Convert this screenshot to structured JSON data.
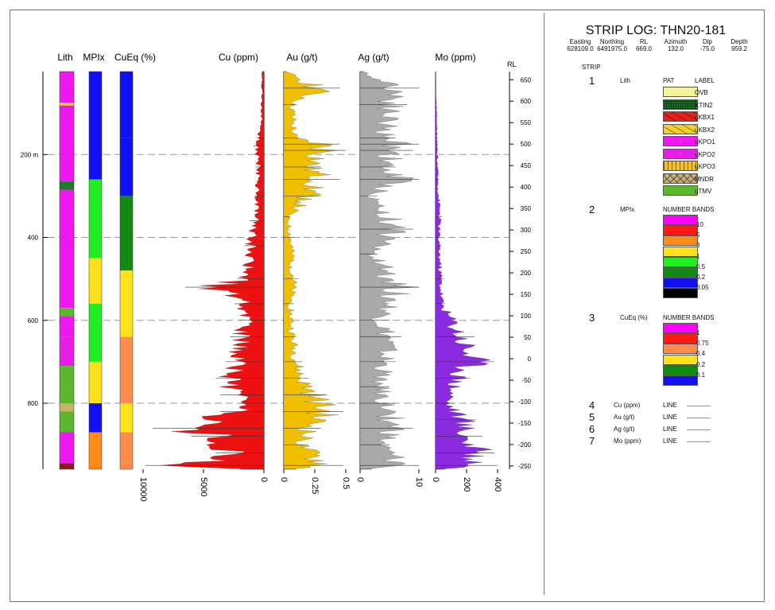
{
  "title": "STRIP LOG: THN20-181",
  "collar": {
    "headers": [
      "Easting",
      "Northing",
      "RL",
      "Azimuth",
      "Dip",
      "Depth"
    ],
    "values": [
      "628109.0",
      "6491975.0",
      "669.0",
      "132.0",
      "-75.0",
      "959.2"
    ]
  },
  "legend": {
    "strip_header": "STRIP",
    "strips": [
      {
        "num": "1",
        "name": "Lith",
        "col2": "PAT",
        "col3": "LABEL",
        "items": [
          {
            "label": "OVB",
            "color": "#f7f39a",
            "pattern": "none"
          },
          {
            "label": "KTIN2",
            "color": "#1d7a2a",
            "pattern": "grid"
          },
          {
            "label": "uKBX1",
            "color": "#e8201c",
            "pattern": "breccia"
          },
          {
            "label": "uKBX2",
            "color": "#f2d12a",
            "pattern": "breccia"
          },
          {
            "label": "uKPO1",
            "color": "#f018f0",
            "pattern": "dots"
          },
          {
            "label": "uKPO2",
            "color": "#e61ee6",
            "pattern": "dots"
          },
          {
            "label": "uKPO3",
            "color": "#f2c21e",
            "pattern": "squares"
          },
          {
            "label": "MNDR",
            "color": "#c8b26a",
            "pattern": "cross"
          },
          {
            "label": "uTMV",
            "color": "#5ab82c",
            "pattern": "none"
          }
        ]
      },
      {
        "num": "2",
        "name": "MPIx",
        "col2": "NUMBER BANDS",
        "items": [
          {
            "label": "10",
            "color": "#ff00ff"
          },
          {
            "label": "5",
            "color": "#ff1a1a"
          },
          {
            "label": "3",
            "color": "#ff8c1a"
          },
          {
            "label": "1",
            "color": "#ffe21a"
          },
          {
            "label": "0.5",
            "color": "#22ee22"
          },
          {
            "label": "0.2",
            "color": "#128a12"
          },
          {
            "label": "0.05",
            "color": "#1010f0"
          },
          {
            "label": "",
            "color": "#000000"
          }
        ]
      },
      {
        "num": "3",
        "name": "CuEq (%)",
        "col2": "NUMBER BANDS",
        "items": [
          {
            "label": "1",
            "color": "#ff00ff"
          },
          {
            "label": "0.75",
            "color": "#ff1a1a"
          },
          {
            "label": "0.4",
            "color": "#ff8c4a"
          },
          {
            "label": "0.2",
            "color": "#ffe21a"
          },
          {
            "label": "0.1",
            "color": "#128a12"
          },
          {
            "label": "",
            "color": "#1010f0"
          }
        ]
      }
    ],
    "lines": [
      {
        "num": "4",
        "name": "Cu (ppm)",
        "type": "LINE"
      },
      {
        "num": "5",
        "name": "Au (g/t)",
        "type": "LINE"
      },
      {
        "num": "6",
        "name": "Ag (g/t)",
        "type": "LINE"
      },
      {
        "num": "7",
        "name": "Mo (ppm)",
        "type": "LINE"
      }
    ]
  },
  "chart_data": {
    "type": "strip-log",
    "depth_axis": {
      "range": [
        0,
        959.2
      ],
      "unit_label": "m",
      "ticks": [
        "200 m",
        "400",
        "600",
        "800"
      ],
      "tick_values": [
        200,
        400,
        600,
        800
      ],
      "dashed_grid": true
    },
    "rl_axis": {
      "label": "RL",
      "ticks": [
        650,
        600,
        550,
        500,
        450,
        400,
        350,
        300,
        250,
        200,
        150,
        100,
        50,
        0,
        -50,
        -100,
        -150,
        -200,
        -250
      ]
    },
    "strip_columns": [
      {
        "name": "Lith",
        "bands": [
          {
            "from": 0,
            "to": 75,
            "color": "#f018f0"
          },
          {
            "from": 75,
            "to": 82,
            "color": "#f2d12a"
          },
          {
            "from": 82,
            "to": 265,
            "color": "#f018f0"
          },
          {
            "from": 265,
            "to": 285,
            "color": "#1d7a2a"
          },
          {
            "from": 285,
            "to": 570,
            "color": "#f018f0"
          },
          {
            "from": 570,
            "to": 590,
            "color": "#5ab82c"
          },
          {
            "from": 590,
            "to": 640,
            "color": "#f018f0"
          },
          {
            "from": 640,
            "to": 710,
            "color": "#e61ee6"
          },
          {
            "from": 710,
            "to": 800,
            "color": "#5ab82c"
          },
          {
            "from": 800,
            "to": 820,
            "color": "#c8b26a"
          },
          {
            "from": 820,
            "to": 870,
            "color": "#5ab82c"
          },
          {
            "from": 870,
            "to": 945,
            "color": "#f018f0"
          },
          {
            "from": 945,
            "to": 959,
            "color": "#8b1a1a"
          }
        ]
      },
      {
        "name": "MPIx",
        "bands": [
          {
            "from": 0,
            "to": 260,
            "color": "#1010f0"
          },
          {
            "from": 260,
            "to": 450,
            "color": "#22ee22"
          },
          {
            "from": 450,
            "to": 560,
            "color": "#ffe21a"
          },
          {
            "from": 560,
            "to": 700,
            "color": "#22ee22"
          },
          {
            "from": 700,
            "to": 800,
            "color": "#ffe21a"
          },
          {
            "from": 800,
            "to": 870,
            "color": "#1010f0"
          },
          {
            "from": 870,
            "to": 959,
            "color": "#ff8c1a"
          }
        ]
      },
      {
        "name": "CuEq (%)",
        "bands": [
          {
            "from": 0,
            "to": 160,
            "color": "#1010f0"
          },
          {
            "from": 160,
            "to": 300,
            "color": "#1010f0"
          },
          {
            "from": 300,
            "to": 480,
            "color": "#128a12"
          },
          {
            "from": 480,
            "to": 640,
            "color": "#ffe21a"
          },
          {
            "from": 640,
            "to": 800,
            "color": "#ff8c4a"
          },
          {
            "from": 800,
            "to": 870,
            "color": "#ffe21a"
          },
          {
            "from": 870,
            "to": 959,
            "color": "#ff8c4a"
          }
        ]
      }
    ],
    "series": [
      {
        "name": "Cu (ppm)",
        "color": "#ee1111",
        "axis_ticks": [
          "10000",
          "5000",
          "0"
        ],
        "range": [
          0,
          10000
        ],
        "points": [
          [
            0,
            200
          ],
          [
            100,
            300
          ],
          [
            160,
            600
          ],
          [
            180,
            900
          ],
          [
            230,
            700
          ],
          [
            300,
            800
          ],
          [
            360,
            1200
          ],
          [
            420,
            1600
          ],
          [
            500,
            2200
          ],
          [
            520,
            6500
          ],
          [
            560,
            2400
          ],
          [
            600,
            2000
          ],
          [
            640,
            2800
          ],
          [
            700,
            3200
          ],
          [
            740,
            4000
          ],
          [
            780,
            3600
          ],
          [
            800,
            2000
          ],
          [
            820,
            3600
          ],
          [
            860,
            9200
          ],
          [
            880,
            6000
          ],
          [
            920,
            4000
          ],
          [
            950,
            9800
          ],
          [
            959,
            2000
          ]
        ]
      },
      {
        "name": "Au (g/t)",
        "color": "#f0c000",
        "axis_ticks": [
          "0",
          "0.25",
          "0.5"
        ],
        "range": [
          0,
          0.5
        ],
        "points": [
          [
            0,
            0.02
          ],
          [
            40,
            0.45
          ],
          [
            80,
            0.1
          ],
          [
            160,
            0.12
          ],
          [
            175,
            0.45
          ],
          [
            190,
            0.5
          ],
          [
            230,
            0.3
          ],
          [
            260,
            0.45
          ],
          [
            300,
            0.3
          ],
          [
            350,
            0.05
          ],
          [
            400,
            0.08
          ],
          [
            500,
            0.12
          ],
          [
            560,
            0.08
          ],
          [
            640,
            0.1
          ],
          [
            700,
            0.15
          ],
          [
            740,
            0.2
          ],
          [
            780,
            0.35
          ],
          [
            820,
            0.48
          ],
          [
            860,
            0.3
          ],
          [
            900,
            0.2
          ],
          [
            950,
            0.48
          ],
          [
            959,
            0.1
          ]
        ]
      },
      {
        "name": "Ag (g/t)",
        "color": "#aaaaaa",
        "axis_ticks": [
          "0",
          "10"
        ],
        "range": [
          0,
          10
        ],
        "points": [
          [
            0,
            0.5
          ],
          [
            40,
            10
          ],
          [
            80,
            8
          ],
          [
            160,
            6
          ],
          [
            175,
            10
          ],
          [
            190,
            9
          ],
          [
            230,
            6
          ],
          [
            260,
            10
          ],
          [
            300,
            3
          ],
          [
            380,
            9
          ],
          [
            440,
            3
          ],
          [
            520,
            10
          ],
          [
            600,
            5
          ],
          [
            640,
            7
          ],
          [
            700,
            6
          ],
          [
            760,
            5
          ],
          [
            800,
            6
          ],
          [
            860,
            9
          ],
          [
            900,
            5
          ],
          [
            950,
            10
          ],
          [
            959,
            2
          ]
        ]
      },
      {
        "name": "Mo (ppm)",
        "color": "#8a2be2",
        "axis_ticks": [
          "0",
          "200",
          "400"
        ],
        "range": [
          0,
          400
        ],
        "points": [
          [
            0,
            0
          ],
          [
            260,
            20
          ],
          [
            350,
            40
          ],
          [
            400,
            30
          ],
          [
            500,
            50
          ],
          [
            560,
            60
          ],
          [
            640,
            250
          ],
          [
            700,
            380
          ],
          [
            740,
            220
          ],
          [
            800,
            120
          ],
          [
            840,
            260
          ],
          [
            880,
            300
          ],
          [
            920,
            380
          ],
          [
            950,
            400
          ],
          [
            959,
            60
          ]
        ]
      }
    ]
  }
}
